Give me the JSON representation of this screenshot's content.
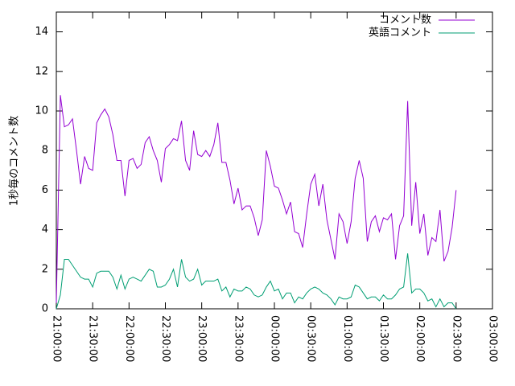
{
  "chart_data": {
    "type": "line",
    "ylabel": "1秒毎のコメント数",
    "x": [
      "21:00:00",
      "21:03:20",
      "21:06:40",
      "21:10:00",
      "21:13:20",
      "21:16:40",
      "21:20:00",
      "21:23:20",
      "21:26:40",
      "21:30:00",
      "21:33:20",
      "21:36:40",
      "21:40:00",
      "21:43:20",
      "21:46:40",
      "21:50:00",
      "21:53:20",
      "21:56:40",
      "22:00:00",
      "22:03:20",
      "22:06:40",
      "22:10:00",
      "22:13:20",
      "22:16:40",
      "22:20:00",
      "22:23:20",
      "22:26:40",
      "22:30:00",
      "22:33:20",
      "22:36:40",
      "22:40:00",
      "22:43:20",
      "22:46:40",
      "22:50:00",
      "22:53:20",
      "22:56:40",
      "23:00:00",
      "23:03:20",
      "23:06:40",
      "23:10:00",
      "23:13:20",
      "23:16:40",
      "23:20:00",
      "23:23:20",
      "23:26:40",
      "23:30:00",
      "23:33:20",
      "23:36:40",
      "23:40:00",
      "23:43:20",
      "23:46:40",
      "23:50:00",
      "23:53:20",
      "23:56:40",
      "00:00:00",
      "00:03:20",
      "00:06:40",
      "00:10:00",
      "00:13:20",
      "00:16:40",
      "00:20:00",
      "00:23:20",
      "00:26:40",
      "00:30:00",
      "00:33:20",
      "00:36:40",
      "00:40:00",
      "00:43:20",
      "00:46:40",
      "00:50:00",
      "00:53:20",
      "00:56:40",
      "01:00:00",
      "01:03:20",
      "01:06:40",
      "01:10:00",
      "01:13:20",
      "01:16:40",
      "01:20:00",
      "01:23:20",
      "01:26:40",
      "01:30:00",
      "01:33:20",
      "01:36:40",
      "01:40:00",
      "01:43:20",
      "01:46:40",
      "01:50:00",
      "01:53:20",
      "01:56:40",
      "02:00:00",
      "02:03:20",
      "02:06:40",
      "02:10:00",
      "02:13:20",
      "02:16:40",
      "02:20:00",
      "02:23:20",
      "02:26:40",
      "02:30:00"
    ],
    "series": [
      {
        "name": "コメント数",
        "color": "#9400d3",
        "values": [
          0.3,
          10.8,
          9.2,
          9.3,
          9.6,
          8.0,
          6.3,
          7.7,
          7.1,
          7.0,
          9.4,
          9.8,
          10.1,
          9.7,
          8.8,
          7.5,
          7.5,
          5.7,
          7.5,
          7.6,
          7.1,
          7.3,
          8.4,
          8.7,
          8.0,
          7.5,
          6.4,
          8.1,
          8.3,
          8.6,
          8.5,
          9.5,
          7.5,
          7.0,
          9.0,
          7.8,
          7.7,
          8.0,
          7.7,
          8.3,
          9.4,
          7.4,
          7.4,
          6.5,
          5.3,
          6.1,
          5.0,
          5.2,
          5.2,
          4.6,
          3.7,
          4.5,
          8.0,
          7.2,
          6.2,
          6.1,
          5.5,
          4.8,
          5.4,
          3.9,
          3.8,
          3.1,
          4.8,
          6.3,
          6.8,
          5.2,
          6.3,
          4.5,
          3.5,
          2.5,
          4.8,
          4.4,
          3.3,
          4.4,
          6.6,
          7.5,
          6.6,
          3.4,
          4.4,
          4.7,
          3.9,
          4.6,
          4.5,
          4.8,
          2.5,
          4.2,
          4.7,
          10.5,
          4.2,
          6.4,
          3.8,
          4.8,
          2.7,
          3.6,
          3.4,
          5.0,
          2.4,
          2.9,
          4.1,
          6.0
        ]
      },
      {
        "name": "英語コメント",
        "color": "#009e73",
        "values": [
          0,
          0.7,
          2.5,
          2.5,
          2.2,
          1.9,
          1.6,
          1.5,
          1.5,
          1.1,
          1.8,
          1.9,
          1.9,
          1.9,
          1.6,
          1.0,
          1.7,
          1.0,
          1.5,
          1.6,
          1.5,
          1.4,
          1.7,
          2.0,
          1.9,
          1.1,
          1.1,
          1.2,
          1.5,
          2.0,
          1.1,
          2.5,
          1.6,
          1.4,
          1.5,
          2.0,
          1.2,
          1.4,
          1.4,
          1.4,
          1.5,
          0.9,
          1.1,
          0.6,
          1.0,
          0.9,
          0.9,
          1.1,
          1.0,
          0.7,
          0.6,
          0.7,
          1.1,
          1.4,
          0.9,
          1.0,
          0.5,
          0.8,
          0.8,
          0.3,
          0.6,
          0.5,
          0.8,
          1.0,
          1.1,
          1.0,
          0.8,
          0.7,
          0.5,
          0.2,
          0.6,
          0.5,
          0.5,
          0.6,
          1.2,
          1.1,
          0.8,
          0.5,
          0.6,
          0.6,
          0.4,
          0.7,
          0.5,
          0.5,
          0.7,
          1.0,
          1.1,
          2.8,
          0.8,
          1.0,
          1.0,
          0.8,
          0.4,
          0.5,
          0.1,
          0.5,
          0.1,
          0.3,
          0.3,
          0.0
        ]
      }
    ],
    "xlim": [
      "21:00:00",
      "03:00:00"
    ],
    "xticks": [
      "21:00:00",
      "21:30:00",
      "22:00:00",
      "22:30:00",
      "23:00:00",
      "23:30:00",
      "00:00:00",
      "00:30:00",
      "01:00:00",
      "01:30:00",
      "02:00:00",
      "02:30:00",
      "03:00:00"
    ],
    "ylim": [
      0,
      15
    ],
    "yticks": [
      0,
      2,
      4,
      6,
      8,
      10,
      12,
      14
    ],
    "legend": "top-right"
  }
}
